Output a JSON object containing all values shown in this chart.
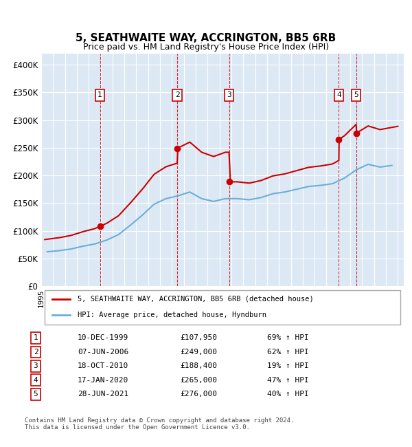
{
  "title1": "5, SEATHWAITE WAY, ACCRINGTON, BB5 6RB",
  "title2": "Price paid vs. HM Land Registry's House Price Index (HPI)",
  "ylabel_ticks": [
    "£0",
    "£50K",
    "£100K",
    "£150K",
    "£200K",
    "£250K",
    "£300K",
    "£350K",
    "£400K"
  ],
  "ytick_vals": [
    0,
    50000,
    100000,
    150000,
    200000,
    250000,
    300000,
    350000,
    400000
  ],
  "xlim_start": 1995.0,
  "xlim_end": 2025.5,
  "ylim": [
    0,
    420000
  ],
  "hpi_color": "#6baed6",
  "price_color": "#cc0000",
  "sale_color": "#cc0000",
  "transactions": [
    {
      "num": 1,
      "date_dec": 1999.94,
      "price": 107950,
      "label": "1"
    },
    {
      "num": 2,
      "date_dec": 2006.44,
      "price": 249000,
      "label": "2"
    },
    {
      "num": 3,
      "date_dec": 2010.8,
      "price": 188400,
      "label": "3"
    },
    {
      "num": 4,
      "date_dec": 2020.04,
      "price": 265000,
      "label": "4"
    },
    {
      "num": 5,
      "date_dec": 2021.49,
      "price": 276000,
      "label": "5"
    }
  ],
  "legend_line1": "5, SEATHWAITE WAY, ACCRINGTON, BB5 6RB (detached house)",
  "legend_line2": "HPI: Average price, detached house, Hyndburn",
  "table": [
    {
      "num": "1",
      "date": "10-DEC-1999",
      "price": "£107,950",
      "hpi": "69% ↑ HPI"
    },
    {
      "num": "2",
      "date": "07-JUN-2006",
      "price": "£249,000",
      "hpi": "62% ↑ HPI"
    },
    {
      "num": "3",
      "date": "18-OCT-2010",
      "price": "£188,400",
      "hpi": "19% ↑ HPI"
    },
    {
      "num": "4",
      "date": "17-JAN-2020",
      "price": "£265,000",
      "hpi": "47% ↑ HPI"
    },
    {
      "num": "5",
      "date": "28-JUN-2021",
      "price": "£276,000",
      "hpi": "40% ↑ HPI"
    }
  ],
  "footnote": "Contains HM Land Registry data © Crown copyright and database right 2024.\nThis data is licensed under the Open Government Licence v3.0.",
  "bg_color": "#dce9f5",
  "plot_bg": "#dce9f5"
}
